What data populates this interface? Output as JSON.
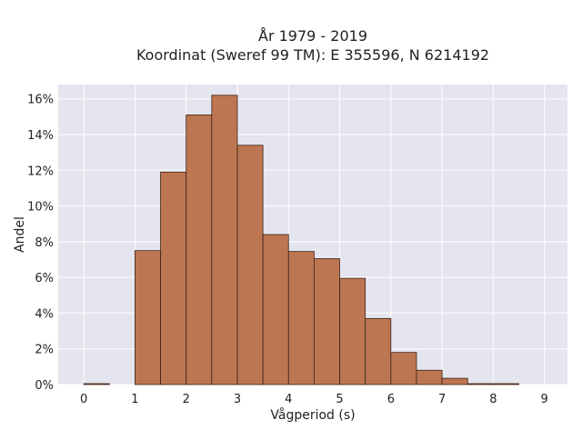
{
  "chart_data": {
    "type": "bar",
    "title_line1": "År 1979 - 2019",
    "title_line2": "Koordinat (Sweref 99 TM): E 355596, N 6214192",
    "xlabel": "Vågperiod (s)",
    "ylabel": "Andel",
    "xlim": [
      -0.5,
      9.45
    ],
    "ylim": [
      0,
      16.8
    ],
    "x_ticks": [
      0,
      1,
      2,
      3,
      4,
      5,
      6,
      7,
      8,
      9
    ],
    "x_tick_labels": [
      "0",
      "1",
      "2",
      "3",
      "4",
      "5",
      "6",
      "7",
      "8",
      "9"
    ],
    "y_ticks": [
      0,
      2,
      4,
      6,
      8,
      10,
      12,
      14,
      16
    ],
    "y_tick_labels": [
      "0%",
      "2%",
      "4%",
      "6%",
      "8%",
      "10%",
      "12%",
      "14%",
      "16%"
    ],
    "bin_width": 0.5,
    "bins": [
      {
        "x0": 0.0,
        "value": 0.05
      },
      {
        "x0": 1.0,
        "value": 7.5
      },
      {
        "x0": 1.5,
        "value": 11.9
      },
      {
        "x0": 2.0,
        "value": 15.1
      },
      {
        "x0": 2.5,
        "value": 16.2
      },
      {
        "x0": 3.0,
        "value": 13.4
      },
      {
        "x0": 3.5,
        "value": 8.4
      },
      {
        "x0": 4.0,
        "value": 7.45
      },
      {
        "x0": 4.5,
        "value": 7.05
      },
      {
        "x0": 5.0,
        "value": 5.95
      },
      {
        "x0": 5.5,
        "value": 3.7
      },
      {
        "x0": 6.0,
        "value": 1.8
      },
      {
        "x0": 6.5,
        "value": 0.8
      },
      {
        "x0": 7.0,
        "value": 0.35
      },
      {
        "x0": 7.5,
        "value": 0.05
      },
      {
        "x0": 8.0,
        "value": 0.05
      }
    ],
    "grid": true,
    "colors": {
      "bar_fill": "#bd7652",
      "bar_stroke": "#3a2418",
      "plot_background": "#e5e5ef",
      "grid_line": "#ffffff"
    }
  }
}
